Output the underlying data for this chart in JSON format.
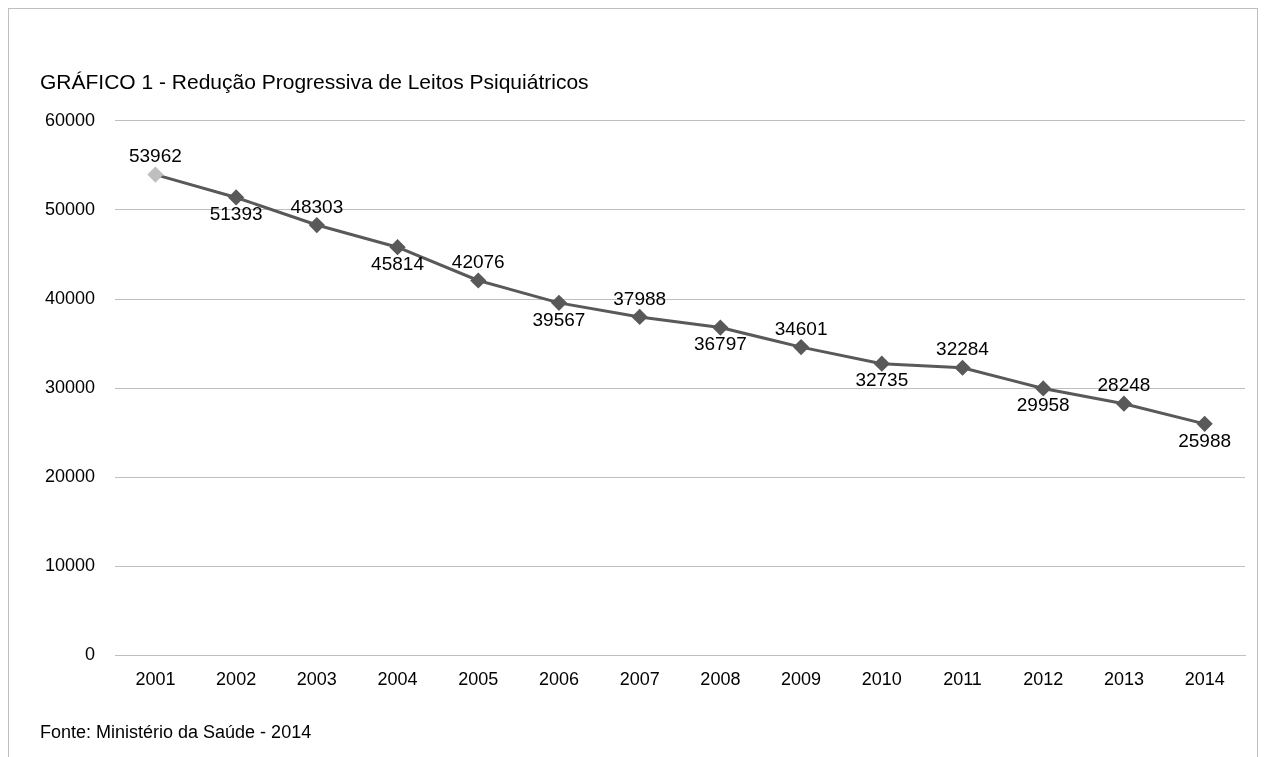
{
  "chart_data": {
    "type": "line",
    "title": "GRÁFICO 1 - Redução Progressiva de Leitos Psiquiátricos",
    "categories": [
      "2001",
      "2002",
      "2003",
      "2004",
      "2005",
      "2006",
      "2007",
      "2008",
      "2009",
      "2010",
      "2011",
      "2012",
      "2013",
      "2014"
    ],
    "series": [
      {
        "color": "#595959",
        "colors": [
          "#bfbfbf",
          "#595959",
          "#595959",
          "#595959",
          "#595959",
          "#595959",
          "#595959",
          "#595959",
          "#595959",
          "#595959",
          "#595959",
          "#595959",
          "#595959",
          "#595959"
        ],
        "values": [
          53962,
          51393,
          48303,
          45814,
          42076,
          39567,
          37988,
          36797,
          34601,
          32735,
          32284,
          29958,
          28248,
          25988
        ]
      }
    ],
    "ylim": [
      0,
      60000
    ],
    "yticks": [
      0,
      10000,
      20000,
      30000,
      40000,
      50000,
      60000
    ],
    "grid": "y",
    "legend": false,
    "marker": "diamond",
    "line_style": "solid",
    "data_labels": true,
    "annotations": [
      "Fonte: Ministério da Saúde - 2014"
    ]
  }
}
